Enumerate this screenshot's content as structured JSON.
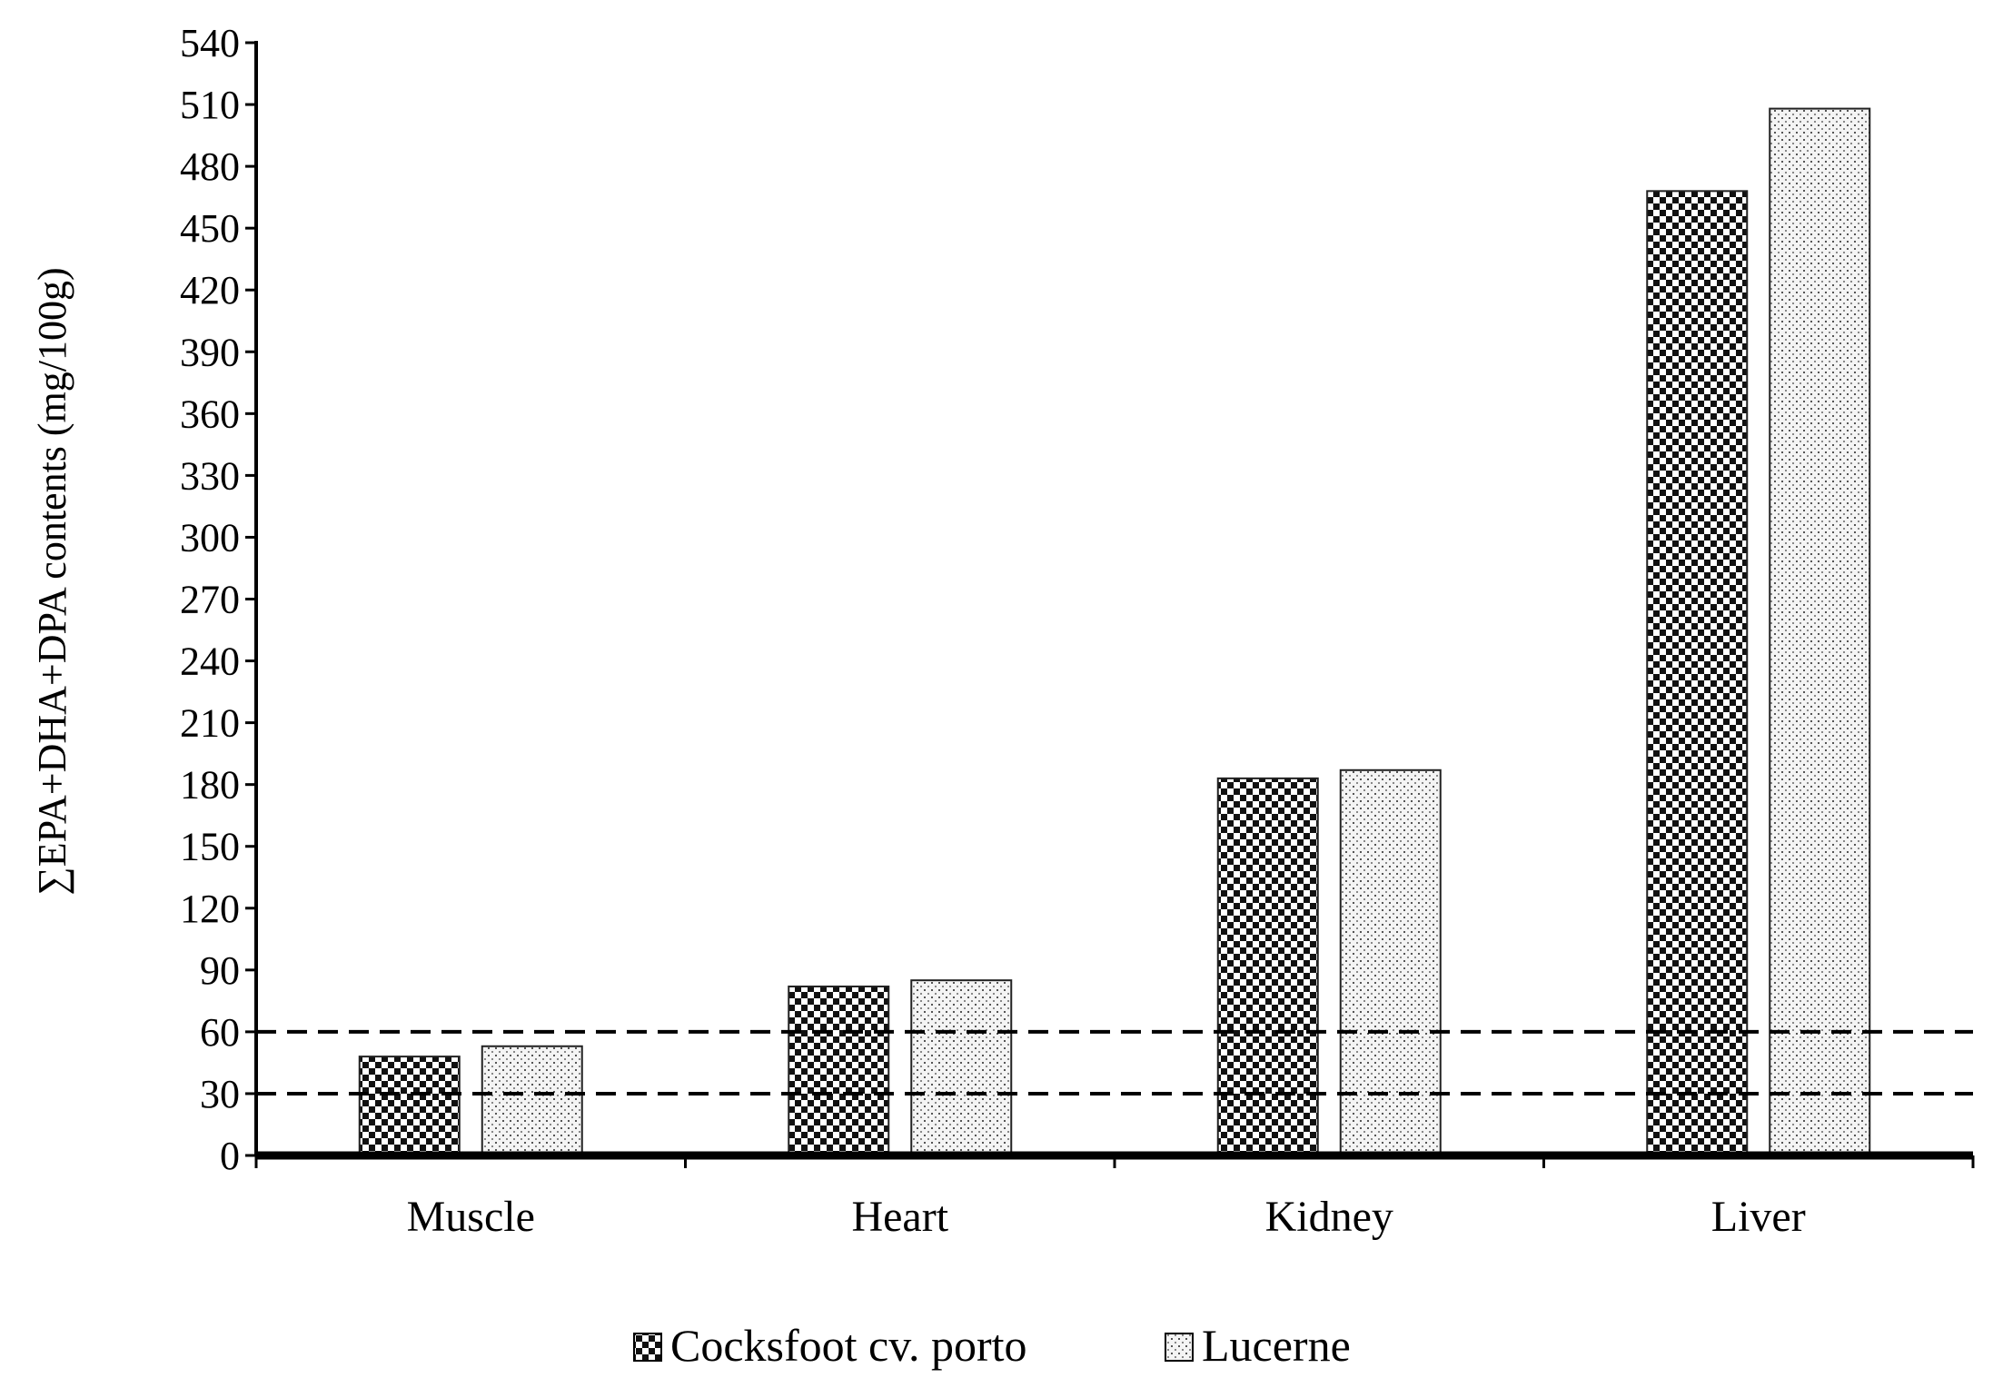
{
  "chart_data": {
    "type": "bar",
    "title": "",
    "xlabel": "",
    "ylabel": "∑EPA+DHA+DPA contents (mg/100g)",
    "categories": [
      "Muscle",
      "Heart",
      "Kidney",
      "Liver"
    ],
    "series": [
      {
        "name": "Cocksfoot cv. porto",
        "values": [
          48,
          82,
          183,
          468
        ],
        "pattern": "checker"
      },
      {
        "name": "Lucerne",
        "values": [
          53,
          85,
          187,
          508
        ],
        "pattern": "dots"
      }
    ],
    "ylim": [
      0,
      540
    ],
    "yticks": [
      0,
      30,
      60,
      90,
      120,
      150,
      180,
      210,
      240,
      270,
      300,
      330,
      360,
      390,
      420,
      450,
      480,
      510,
      540
    ],
    "reference_lines": [
      30,
      60
    ],
    "grid": false,
    "legend": "bottom"
  }
}
